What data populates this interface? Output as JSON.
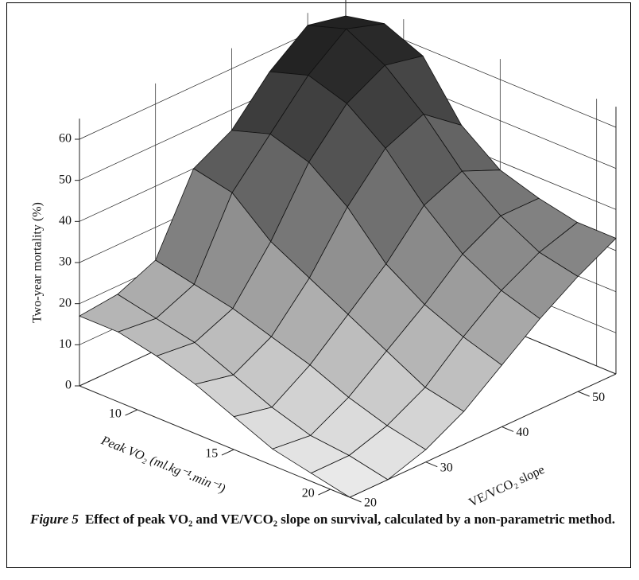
{
  "chart_data": {
    "type": "surface",
    "xlabel": "Peak VO₂  (ml.kg⁻¹.min⁻¹)",
    "ylabel": "VE/VCO₂ slope",
    "zlabel": "Two-year mortality (%)",
    "x": [
      7,
      9,
      11,
      13,
      15,
      17,
      19,
      21
    ],
    "y": [
      20,
      25,
      30,
      35,
      40,
      45,
      50,
      55
    ],
    "z": [
      [
        17,
        18,
        22,
        40,
        45,
        55,
        62,
        60
      ],
      [
        17,
        16,
        20,
        38,
        48,
        58,
        65,
        62
      ],
      [
        15,
        14,
        18,
        30,
        45,
        55,
        60,
        58
      ],
      [
        12,
        10,
        15,
        25,
        38,
        48,
        52,
        45
      ],
      [
        8,
        6,
        12,
        20,
        28,
        38,
        42,
        38
      ],
      [
        4,
        3,
        8,
        15,
        22,
        30,
        35,
        35
      ],
      [
        2,
        2,
        5,
        10,
        18,
        25,
        30,
        33
      ],
      [
        0,
        0,
        3,
        8,
        15,
        22,
        28,
        33
      ]
    ],
    "xlim": [
      7,
      21
    ],
    "xticks": [
      10,
      15,
      20
    ],
    "ylim": [
      20,
      55
    ],
    "yticks": [
      20,
      30,
      40,
      50
    ],
    "zlim": [
      0,
      65
    ],
    "zticks": [
      0,
      10,
      20,
      30,
      40,
      50,
      60
    ],
    "grid": true
  },
  "caption": {
    "label": "Figure 5",
    "text": "Effect of peak VO₂ and VE/VCO₂ slope on survival, calculated by a non-parametric method."
  }
}
